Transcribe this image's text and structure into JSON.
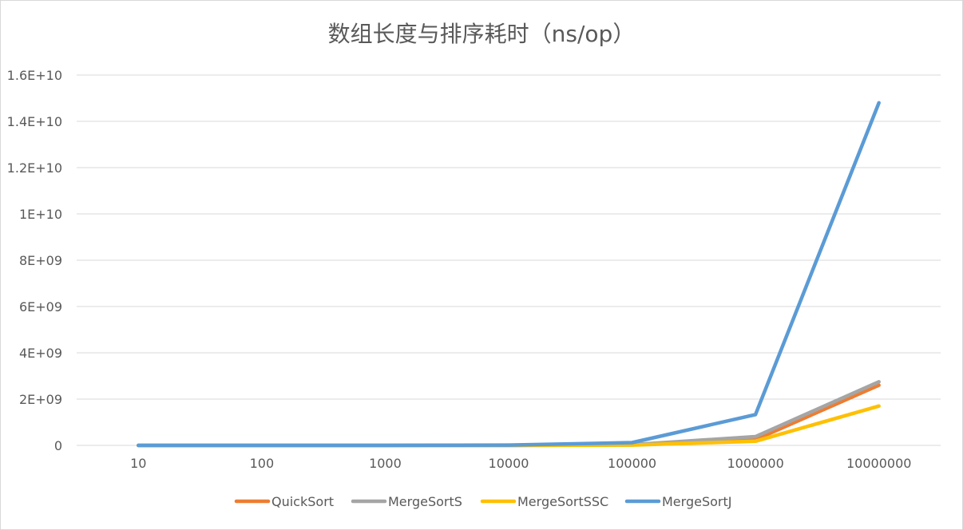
{
  "chart_data": {
    "type": "line",
    "title": "数组长度与排序耗时（ns/op）",
    "xlabel": "",
    "ylabel": "",
    "categories": [
      "10",
      "100",
      "1000",
      "10000",
      "100000",
      "1000000",
      "10000000"
    ],
    "y_ticks": [
      "0",
      "2E+09",
      "4E+09",
      "6E+09",
      "8E+09",
      "1E+10",
      "1.2E+10",
      "1.4E+10",
      "1.6E+10"
    ],
    "ylim": [
      0,
      16000000000
    ],
    "grid": true,
    "legend_position": "bottom",
    "series": [
      {
        "name": "QuickSort",
        "color": "#ED7D31",
        "values": [
          500,
          8000,
          100000,
          1500000,
          20000000,
          250000000,
          2600000000
        ]
      },
      {
        "name": "MergeSortS",
        "color": "#A5A5A5",
        "values": [
          600,
          9000,
          120000,
          2000000,
          30000000,
          380000000,
          2750000000
        ]
      },
      {
        "name": "MergeSortSSC",
        "color": "#FFC000",
        "values": [
          400,
          6000,
          80000,
          1000000,
          15000000,
          180000000,
          1700000000
        ]
      },
      {
        "name": "MergeSortJ",
        "color": "#5B9BD5",
        "values": [
          2000,
          40000,
          500000,
          15000000,
          120000000,
          1330000000,
          14800000000
        ]
      }
    ]
  }
}
